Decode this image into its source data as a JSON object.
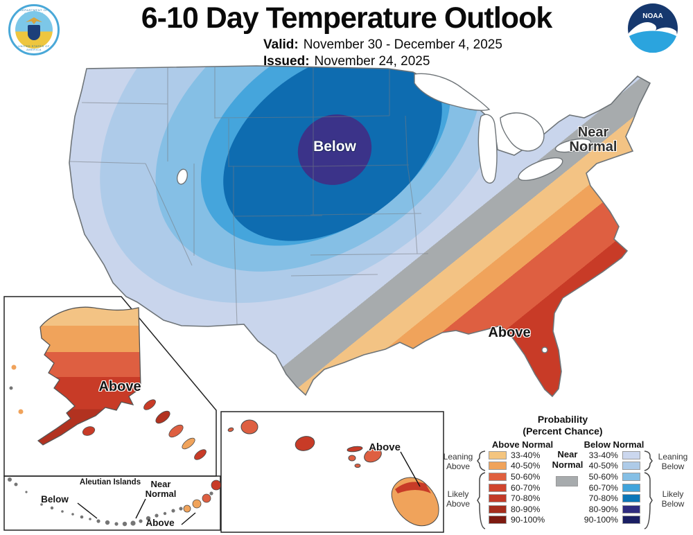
{
  "header": {
    "title": "6-10 Day Temperature Outlook",
    "valid_label": "Valid:",
    "valid_value": "November 30 - December 4, 2025",
    "issued_label": "Issued:",
    "issued_value": "November 24, 2025",
    "noaa_logo_text": "NOAA",
    "seal_top": "DEPARTMENT OF COMMERCE",
    "seal_bottom": "UNITED STATES OF AMERICA"
  },
  "map_labels": {
    "conus_below": "Below",
    "conus_near_line1": "Near",
    "conus_near_line2": "Normal",
    "conus_above": "Above",
    "alaska_above": "Above",
    "hawaii_above": "Above",
    "aleutian_title": "Aleutian Islands",
    "aleutian_below": "Below",
    "aleutian_near_line1": "Near",
    "aleutian_near_line2": "Normal",
    "aleutian_above": "Above"
  },
  "legend": {
    "title_line1": "Probability",
    "title_line2": "(Percent Chance)",
    "above_header": "Above Normal",
    "below_header": "Below Normal",
    "near_line1": "Near",
    "near_line2": "Normal",
    "near_color": "#A7ABAD",
    "rows": [
      {
        "range": "33-40%",
        "above": "#F4C57F",
        "below": "#CBD7EE"
      },
      {
        "range": "40-50%",
        "above": "#F0A35B",
        "below": "#AECBE8"
      },
      {
        "range": "50-60%",
        "above": "#E0603F",
        "below": "#85BFE5"
      },
      {
        "range": "60-70%",
        "above": "#D0452E",
        "below": "#41A4DB"
      },
      {
        "range": "70-80%",
        "above": "#C23A27",
        "below": "#0B76B7"
      },
      {
        "range": "80-90%",
        "above": "#A52D1C",
        "below": "#2F2C7F"
      },
      {
        "range": "90-100%",
        "above": "#7D1A10",
        "below": "#1A1F63"
      }
    ],
    "brackets": {
      "leaning_above_line1": "Leaning",
      "leaning_above_line2": "Above",
      "likely_above_line1": "Likely",
      "likely_above_line2": "Above",
      "leaning_below_line1": "Leaning",
      "leaning_below_line2": "Below",
      "likely_below_line1": "Likely",
      "likely_below_line2": "Below"
    }
  },
  "palette": {
    "above33": "#F3C384",
    "above40": "#F0A35B",
    "above50": "#DE5F41",
    "above60": "#C83B27",
    "above70": "#B23220",
    "below33": "#C9D5EC",
    "below40": "#AECBE9",
    "below50": "#85BFE5",
    "below60": "#45A5DC",
    "below70": "#0E6CB0",
    "below80_center": "#3B3389",
    "near": "#A7ABAD",
    "island_gray": "#757575",
    "coast_line": "#6E7478"
  }
}
